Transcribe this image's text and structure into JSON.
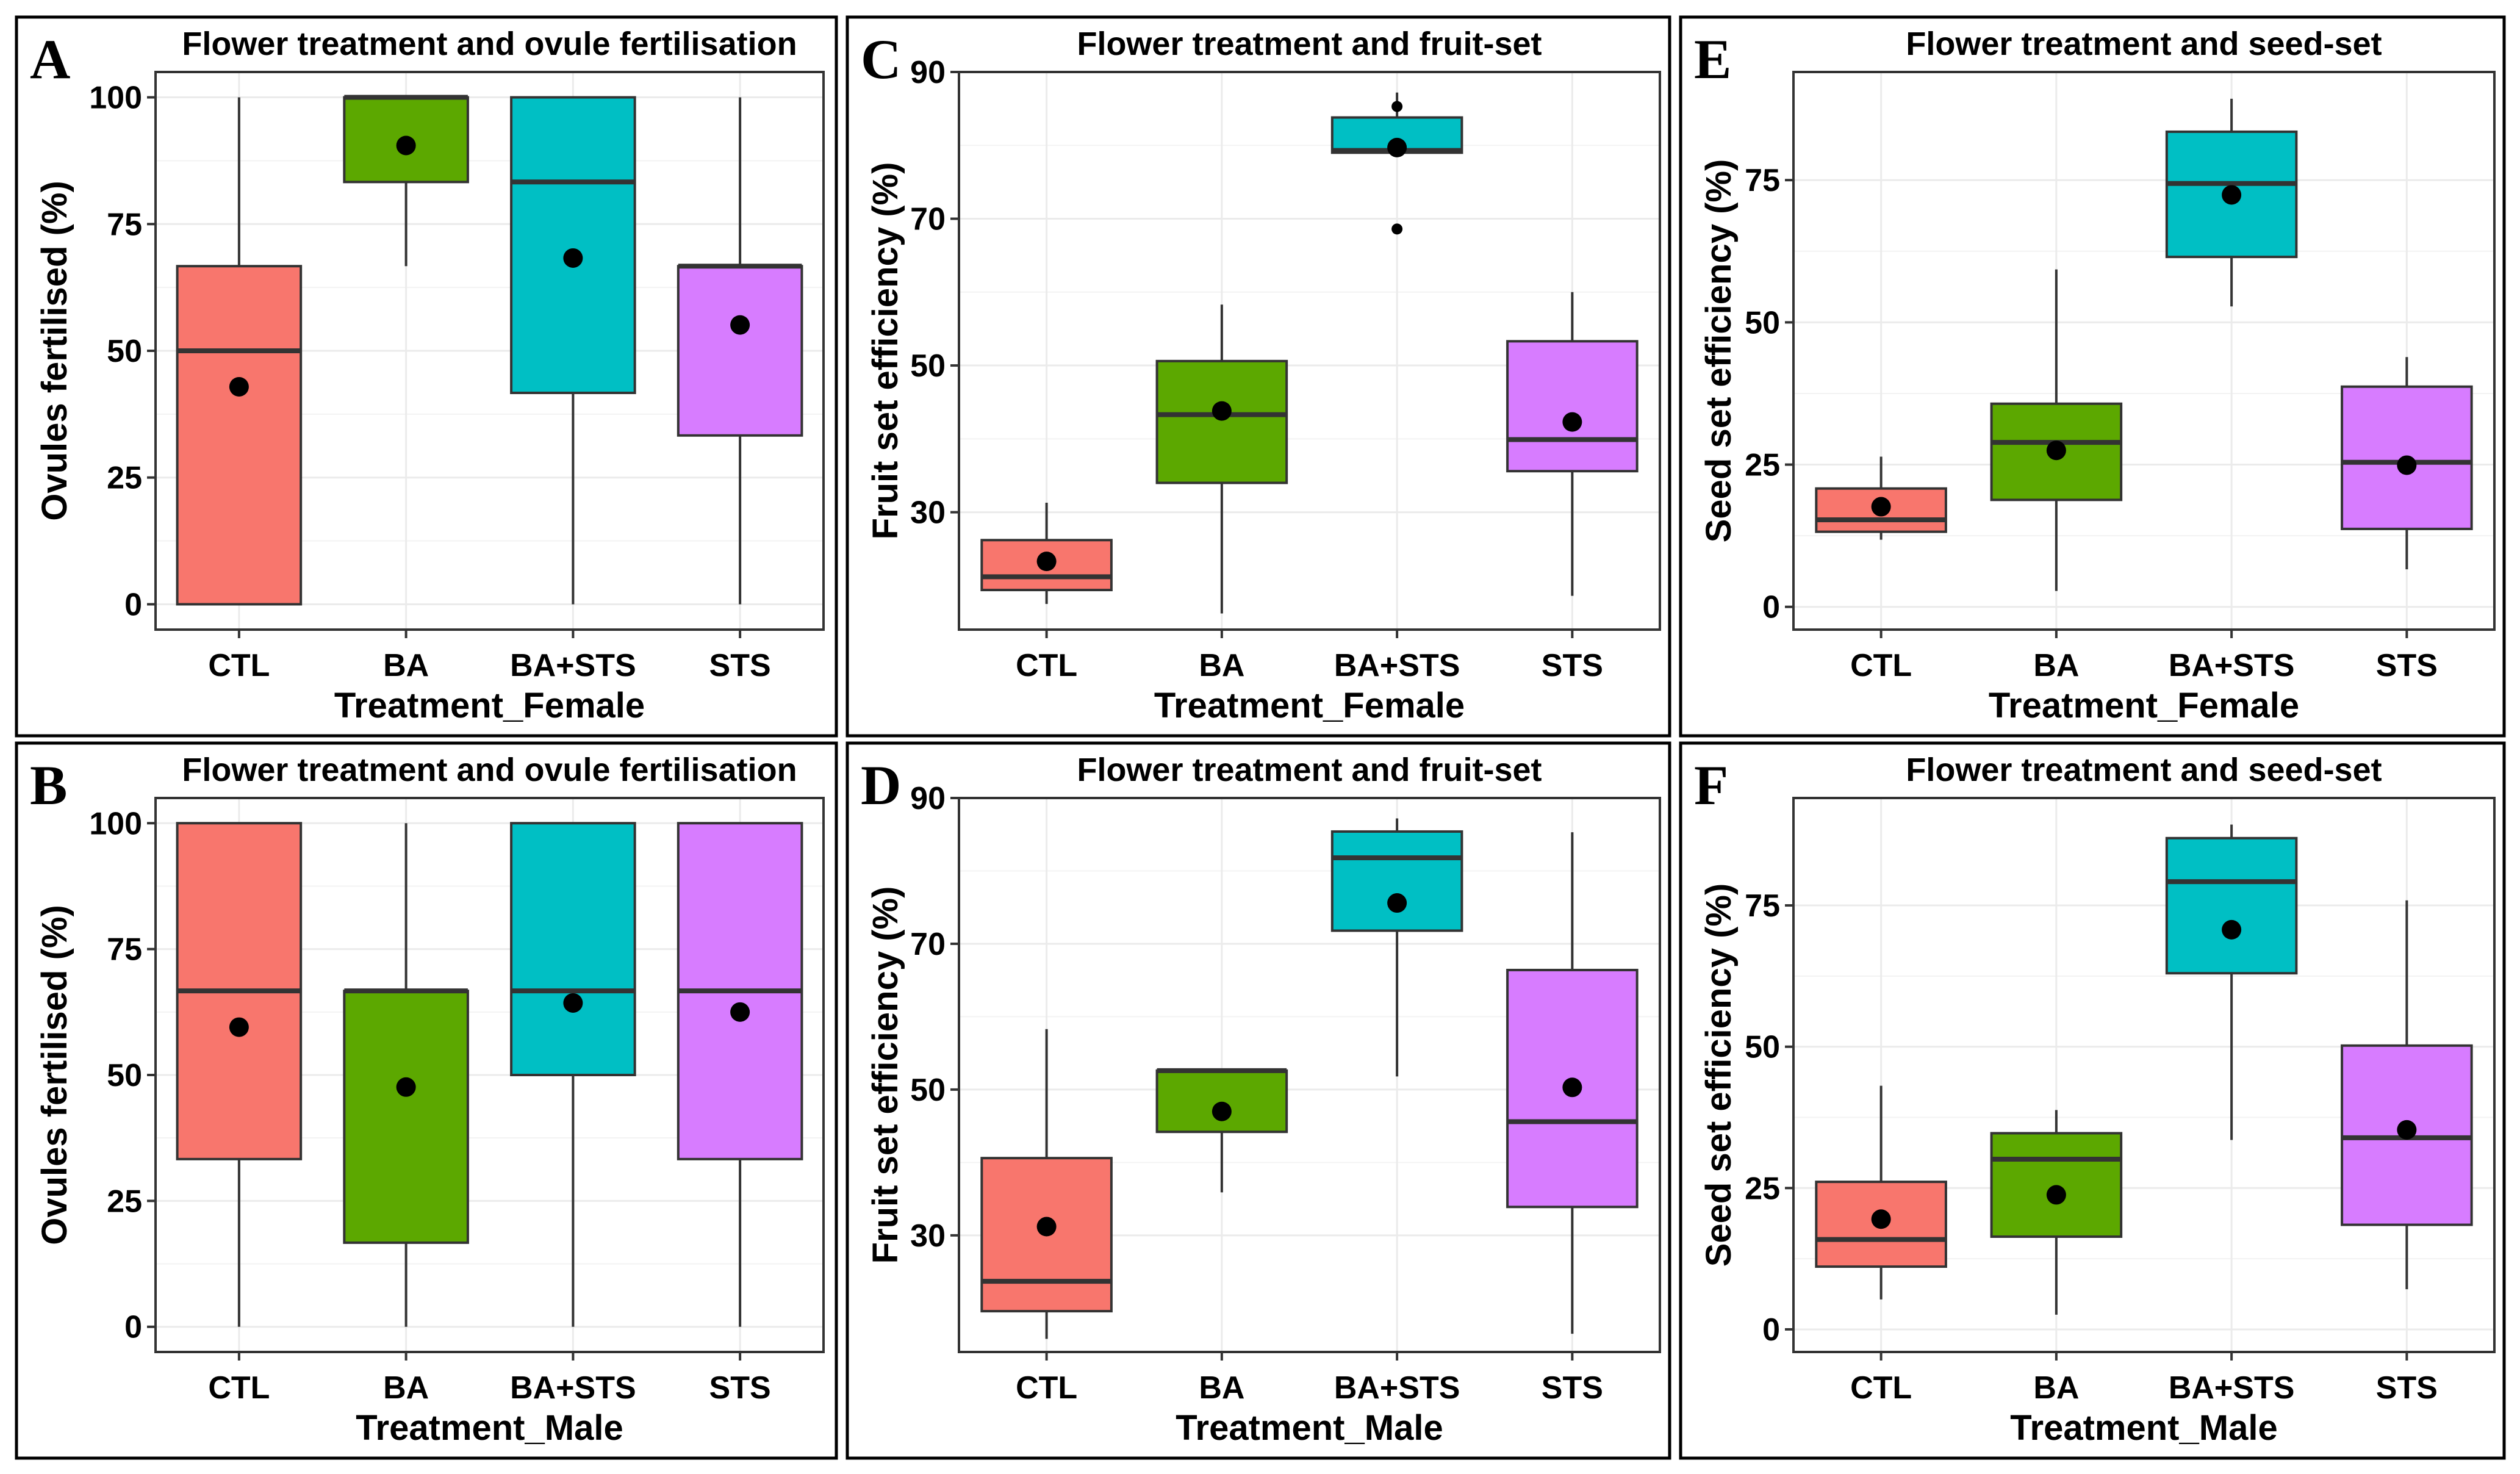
{
  "figure": {
    "colors": {
      "CTL": "#F8766D",
      "BA": "#5CA800",
      "BA+STS": "#00BFC4",
      "STS": "#D77CFF"
    }
  },
  "chart_data": [
    {
      "panel_letter": "A",
      "type": "box",
      "title": "Flower treatment and ovule fertilisation",
      "xlabel": "Treatment_Female",
      "ylabel": "Ovules fertilised (%)",
      "categories": [
        "CTL",
        "BA",
        "BA+STS",
        "STS"
      ],
      "ylim": [
        -5,
        105
      ],
      "yticks": [
        0,
        25,
        50,
        75,
        100
      ],
      "ytick_labels": [
        "0",
        "25",
        "50",
        "75",
        "100"
      ],
      "grid": true,
      "boxes": [
        {
          "q1": 0,
          "median": 50,
          "q3": 66.7,
          "whisker_low": 0,
          "whisker_high": 100,
          "mean": 42.9,
          "outliers": []
        },
        {
          "q1": 83.3,
          "median": 100,
          "q3": 100,
          "whisker_low": 66.7,
          "whisker_high": 100,
          "mean": 90.5,
          "outliers": []
        },
        {
          "q1": 41.7,
          "median": 83.3,
          "q3": 100,
          "whisker_low": 0,
          "whisker_high": 100,
          "mean": 68.3,
          "outliers": []
        },
        {
          "q1": 33.3,
          "median": 66.7,
          "q3": 66.7,
          "whisker_low": 0,
          "whisker_high": 100,
          "mean": 55.1,
          "outliers": []
        }
      ]
    },
    {
      "panel_letter": "B",
      "type": "box",
      "title": "Flower treatment and ovule fertilisation",
      "xlabel": "Treatment_Male",
      "ylabel": "Ovules fertilised (%)",
      "categories": [
        "CTL",
        "BA",
        "BA+STS",
        "STS"
      ],
      "ylim": [
        -5,
        105
      ],
      "yticks": [
        0,
        25,
        50,
        75,
        100
      ],
      "ytick_labels": [
        "0",
        "25",
        "50",
        "75",
        "100"
      ],
      "grid": true,
      "boxes": [
        {
          "q1": 33.3,
          "median": 66.7,
          "q3": 100,
          "whisker_low": 0,
          "whisker_high": 100,
          "mean": 59.5,
          "outliers": []
        },
        {
          "q1": 16.7,
          "median": 66.7,
          "q3": 66.7,
          "whisker_low": 0,
          "whisker_high": 100,
          "mean": 47.6,
          "outliers": []
        },
        {
          "q1": 50,
          "median": 66.7,
          "q3": 100,
          "whisker_low": 0,
          "whisker_high": 100,
          "mean": 64.3,
          "outliers": []
        },
        {
          "q1": 33.3,
          "median": 66.7,
          "q3": 100,
          "whisker_low": 0,
          "whisker_high": 100,
          "mean": 62.5,
          "outliers": []
        }
      ]
    },
    {
      "panel_letter": "C",
      "type": "box",
      "title": "Flower treatment and fruit-set",
      "xlabel": "Treatment_Female",
      "ylabel": "Fruit set efficiency (%)",
      "categories": [
        "CTL",
        "BA",
        "BA+STS",
        "STS"
      ],
      "ylim": [
        14,
        90
      ],
      "yticks": [
        30,
        50,
        70,
        90
      ],
      "ytick_labels": [
        "30",
        "50",
        "70",
        "90"
      ],
      "grid": true,
      "boxes": [
        {
          "q1": 19.4,
          "median": 21.2,
          "q3": 26.2,
          "whisker_low": 17.5,
          "whisker_high": 31.3,
          "mean": 23.3,
          "outliers": []
        },
        {
          "q1": 34,
          "median": 43.3,
          "q3": 50.6,
          "whisker_low": 16.2,
          "whisker_high": 58.3,
          "mean": 43.8,
          "outliers": []
        },
        {
          "q1": 79,
          "median": 79.3,
          "q3": 83.8,
          "whisker_low": 79,
          "whisker_high": 87.2,
          "mean": 79.7,
          "outliers": [
            85.3,
            68.6
          ]
        },
        {
          "q1": 35.6,
          "median": 39.9,
          "q3": 53.3,
          "whisker_low": 18.6,
          "whisker_high": 60,
          "mean": 42.3,
          "outliers": []
        }
      ]
    },
    {
      "panel_letter": "D",
      "type": "box",
      "title": "Flower treatment and fruit-set",
      "xlabel": "Treatment_Male",
      "ylabel": "Fruit set efficiency (%)",
      "categories": [
        "CTL",
        "BA",
        "BA+STS",
        "STS"
      ],
      "ylim": [
        14,
        90
      ],
      "yticks": [
        30,
        50,
        70,
        90
      ],
      "ytick_labels": [
        "30",
        "50",
        "70",
        "90"
      ],
      "grid": true,
      "boxes": [
        {
          "q1": 19.6,
          "median": 23.7,
          "q3": 40.6,
          "whisker_low": 15.8,
          "whisker_high": 58.3,
          "mean": 31.2,
          "outliers": []
        },
        {
          "q1": 44.2,
          "median": 52.6,
          "q3": 52.6,
          "whisker_low": 35.9,
          "whisker_high": 52.6,
          "mean": 47,
          "outliers": []
        },
        {
          "q1": 71.8,
          "median": 81.8,
          "q3": 85.4,
          "whisker_low": 51.8,
          "whisker_high": 87.2,
          "mean": 75.6,
          "outliers": []
        },
        {
          "q1": 33.9,
          "median": 45.6,
          "q3": 66.4,
          "whisker_low": 16.5,
          "whisker_high": 85.3,
          "mean": 50.3,
          "outliers": []
        }
      ]
    },
    {
      "panel_letter": "E",
      "type": "box",
      "title": "Flower treatment and seed-set",
      "xlabel": "Treatment_Female",
      "ylabel": "Seed set efficiency (%)",
      "categories": [
        "CTL",
        "BA",
        "BA+STS",
        "STS"
      ],
      "ylim": [
        -4,
        94
      ],
      "yticks": [
        0,
        25,
        50,
        75
      ],
      "ytick_labels": [
        "0",
        "25",
        "50",
        "75"
      ],
      "grid": true,
      "boxes": [
        {
          "q1": 13.2,
          "median": 15.3,
          "q3": 20.8,
          "whisker_low": 11.8,
          "whisker_high": 26.4,
          "mean": 17.6,
          "outliers": []
        },
        {
          "q1": 18.8,
          "median": 28.9,
          "q3": 35.7,
          "whisker_low": 2.8,
          "whisker_high": 59.3,
          "mean": 27.5,
          "outliers": []
        },
        {
          "q1": 61.5,
          "median": 74.4,
          "q3": 83.5,
          "whisker_low": 52.8,
          "whisker_high": 89.3,
          "mean": 72.4,
          "outliers": []
        },
        {
          "q1": 13.7,
          "median": 25.4,
          "q3": 38.7,
          "whisker_low": 6.6,
          "whisker_high": 43.9,
          "mean": 24.9,
          "outliers": []
        }
      ]
    },
    {
      "panel_letter": "F",
      "type": "box",
      "title": "Flower treatment and seed-set",
      "xlabel": "Treatment_Male",
      "ylabel": "Seed set efficiency (%)",
      "categories": [
        "CTL",
        "BA",
        "BA+STS",
        "STS"
      ],
      "ylim": [
        -4,
        94
      ],
      "yticks": [
        0,
        25,
        50,
        75
      ],
      "ytick_labels": [
        "0",
        "25",
        "50",
        "75"
      ],
      "grid": true,
      "boxes": [
        {
          "q1": 11.1,
          "median": 15.9,
          "q3": 26.1,
          "whisker_low": 5.3,
          "whisker_high": 43.1,
          "mean": 19.5,
          "outliers": []
        },
        {
          "q1": 16.4,
          "median": 30.1,
          "q3": 34.7,
          "whisker_low": 2.6,
          "whisker_high": 38.8,
          "mean": 23.8,
          "outliers": []
        },
        {
          "q1": 63,
          "median": 79.2,
          "q3": 86.9,
          "whisker_low": 33.5,
          "whisker_high": 89.3,
          "mean": 70.7,
          "outliers": []
        },
        {
          "q1": 18.5,
          "median": 33.9,
          "q3": 50.2,
          "whisker_low": 7.1,
          "whisker_high": 75.9,
          "mean": 35.3,
          "outliers": []
        }
      ]
    }
  ]
}
